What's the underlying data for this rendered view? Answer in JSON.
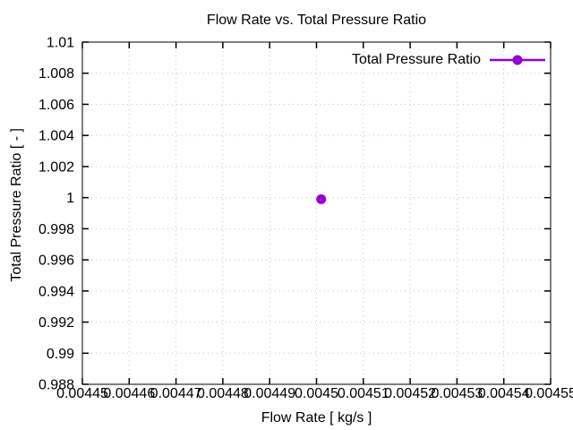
{
  "window": {
    "background": "#ffffff"
  },
  "chart_data": {
    "type": "scatter",
    "title": "Flow Rate vs. Total Pressure Ratio",
    "xlabel": "Flow Rate [ kg/s ]",
    "ylabel": "Total Pressure Ratio [ - ]",
    "xlim": [
      0.00445,
      0.00455
    ],
    "ylim": [
      0.988,
      1.01
    ],
    "xticks": [
      0.00445,
      0.00446,
      0.00447,
      0.00448,
      0.00449,
      0.0045,
      0.00451,
      0.00452,
      0.00453,
      0.00454,
      0.00455
    ],
    "xtick_labels": [
      "0.00445",
      "0.00446",
      "0.00447",
      "0.00448",
      "0.00449",
      "0.0045",
      "0.00451",
      "0.00452",
      "0.00453",
      "0.00454",
      "0.00455"
    ],
    "yticks": [
      0.988,
      0.99,
      0.992,
      0.994,
      0.996,
      0.998,
      1,
      1.002,
      1.004,
      1.006,
      1.008,
      1.01
    ],
    "ytick_labels": [
      "0.988",
      "0.99",
      "0.992",
      "0.994",
      "0.996",
      "0.998",
      "1",
      "1.002",
      "1.004",
      "1.006",
      "1.008",
      "1.01"
    ],
    "grid": {
      "show": true,
      "style": "dotted",
      "color": "#c6c6c6"
    },
    "axis_color": "#000000",
    "text_color": "#000000",
    "legend": {
      "position": "inside-top-right",
      "entries": [
        {
          "label": "Total Pressure Ratio",
          "color": "#9400d3",
          "marker": "filled-circle",
          "style": "linespoints"
        }
      ]
    },
    "series": [
      {
        "name": "Total Pressure Ratio",
        "color": "#9400d3",
        "marker": "filled-circle",
        "points": [
          {
            "x": 0.004501,
            "y": 0.9999
          }
        ]
      }
    ]
  }
}
